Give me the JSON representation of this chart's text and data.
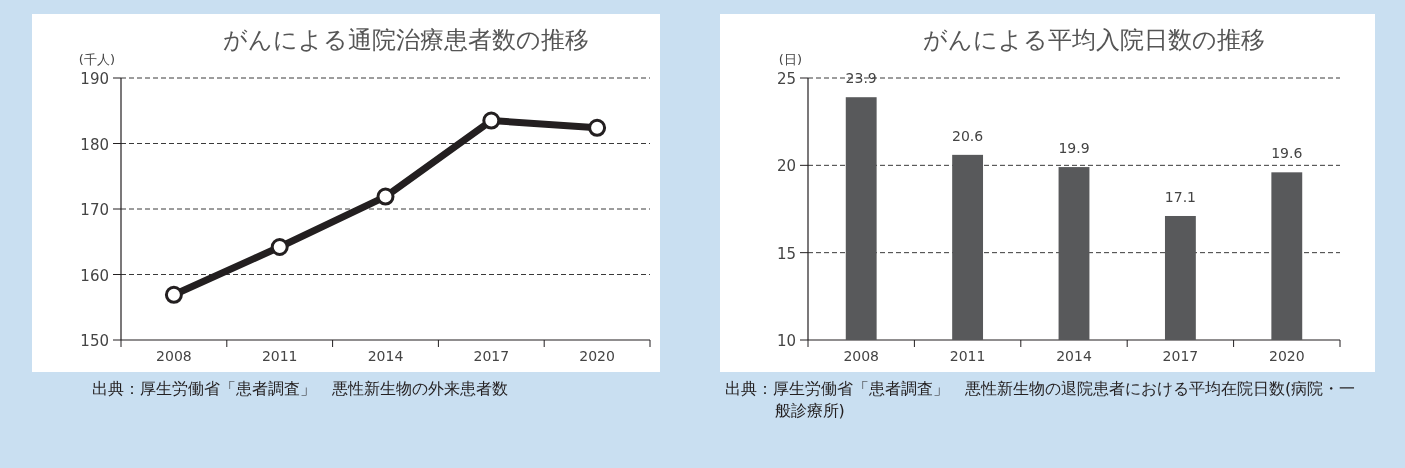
{
  "chart_data": [
    {
      "type": "line",
      "title": "がんによる通院治療患者数の推移",
      "ylabel": "(千人)",
      "categories": [
        "2008",
        "2011",
        "2014",
        "2017",
        "2020"
      ],
      "series": [
        {
          "color": "#231f20",
          "values": [
            156.9,
            164.2,
            171.9,
            183.5,
            182.4
          ]
        }
      ],
      "ylim": [
        150,
        190
      ],
      "yticks": [
        150,
        160,
        170,
        180,
        190
      ],
      "grid": "y",
      "marker": "circle",
      "line_style": "solid",
      "annotations": [
        "出典：厚生労働省「患者調査」　悪性新生物の外来患者数"
      ]
    },
    {
      "type": "bar",
      "title": "がんによる平均入院日数の推移",
      "ylabel": "(日)",
      "categories": [
        "2008",
        "2011",
        "2014",
        "2017",
        "2020"
      ],
      "series": [
        {
          "color": "#58595b",
          "values": [
            23.9,
            20.6,
            19.9,
            17.1,
            19.6
          ]
        }
      ],
      "ylim": [
        10,
        25
      ],
      "yticks": [
        10,
        15,
        20,
        25
      ],
      "grid": "y",
      "data_labels": true,
      "annotations": [
        "出典：厚生労働省「患者調査」　悪性新生物の退院患者における平均在院日数(病院・一般診療所)"
      ]
    }
  ]
}
